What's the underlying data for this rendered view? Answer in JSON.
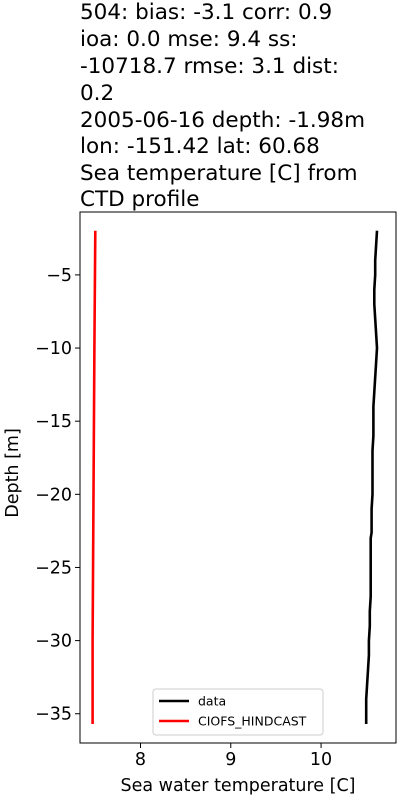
{
  "chart_data": {
    "type": "line",
    "title_lines": [
      "504: bias: -3.1  corr: 0.9",
      "ioa: 0.0  mse: 9.4  ss:",
      "-10718.7  rmse: 3.1  dist:",
      "0.2",
      "2005-06-16 depth: -1.98m",
      "lon: -151.42 lat: 60.68",
      "Sea temperature [C] from",
      "CTD profile"
    ],
    "xlabel": "Sea water temperature [C]",
    "ylabel": "Depth [m]",
    "xlim": [
      7.33,
      10.83
    ],
    "ylim": [
      -37.0,
      -0.7
    ],
    "xticks": [
      8,
      9,
      10
    ],
    "yticks": [
      -5,
      -10,
      -15,
      -20,
      -25,
      -30,
      -35
    ],
    "grid": false,
    "legend_position": "lower-center",
    "series": [
      {
        "name": "data",
        "color": "#000000",
        "points": [
          [
            10.62,
            -1.98
          ],
          [
            10.61,
            -3.0
          ],
          [
            10.6,
            -4.0
          ],
          [
            10.6,
            -5.0
          ],
          [
            10.59,
            -6.0
          ],
          [
            10.59,
            -7.0
          ],
          [
            10.6,
            -8.0
          ],
          [
            10.61,
            -9.0
          ],
          [
            10.62,
            -10.0
          ],
          [
            10.61,
            -11.0
          ],
          [
            10.6,
            -12.0
          ],
          [
            10.59,
            -13.0
          ],
          [
            10.58,
            -14.0
          ],
          [
            10.58,
            -15.0
          ],
          [
            10.58,
            -16.0
          ],
          [
            10.57,
            -17.0
          ],
          [
            10.57,
            -18.0
          ],
          [
            10.57,
            -19.0
          ],
          [
            10.57,
            -20.0
          ],
          [
            10.56,
            -21.0
          ],
          [
            10.56,
            -22.0
          ],
          [
            10.56,
            -22.6
          ],
          [
            10.55,
            -23.0
          ],
          [
            10.55,
            -24.0
          ],
          [
            10.55,
            -25.0
          ],
          [
            10.55,
            -26.0
          ],
          [
            10.55,
            -27.0
          ],
          [
            10.54,
            -28.0
          ],
          [
            10.54,
            -29.0
          ],
          [
            10.53,
            -30.0
          ],
          [
            10.53,
            -31.0
          ],
          [
            10.52,
            -32.0
          ],
          [
            10.51,
            -33.0
          ],
          [
            10.5,
            -34.0
          ],
          [
            10.5,
            -35.0
          ],
          [
            10.5,
            -35.7
          ]
        ]
      },
      {
        "name": "CIOFS_HINDCAST",
        "color": "#ff0000",
        "points": [
          [
            7.5,
            -1.98
          ],
          [
            7.49,
            -10.0
          ],
          [
            7.48,
            -20.0
          ],
          [
            7.47,
            -30.0
          ],
          [
            7.47,
            -35.7
          ]
        ]
      }
    ]
  }
}
